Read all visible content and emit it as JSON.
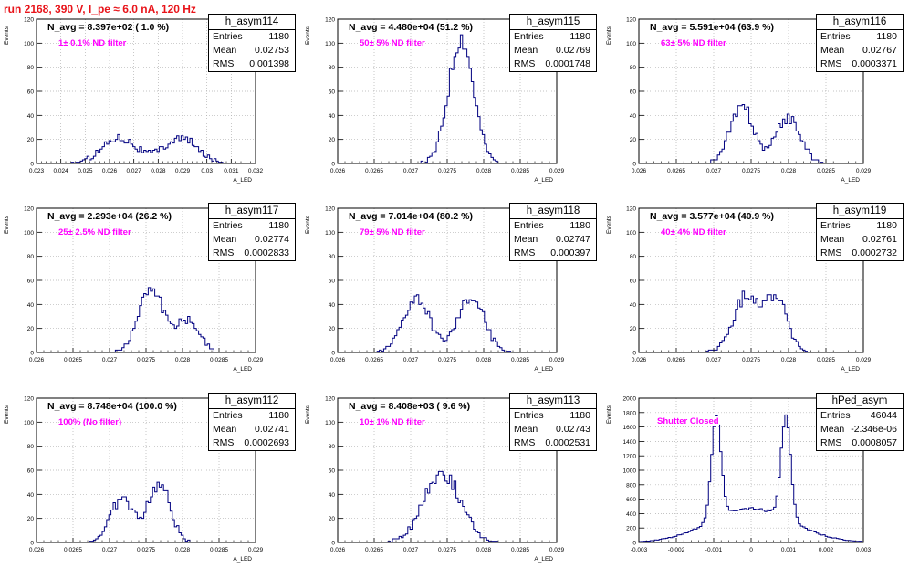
{
  "run_title": "run 2168,   390 V, I_pe ≈ 6.0 nA, 120 Hz",
  "colors": {
    "histogram_line": "#000080",
    "title": "#e8141a",
    "annotation": "#ff00ff",
    "grid": "#b0b0b0"
  },
  "chart_data": [
    {
      "type": "histogram",
      "hist_name": "h_asym114",
      "navg": "N_avg = 8.397e+02 ( 1.0 %)",
      "filter": "1± 0.1% ND filter",
      "stats": {
        "entries": "1180",
        "mean": "0.02753",
        "rms": "0.001398"
      },
      "ylabel": "Events",
      "xlabel": "A_LED",
      "xlim": [
        0.023,
        0.032
      ],
      "ylim": [
        0,
        120
      ],
      "xticks": [
        "0.023",
        "0.024",
        "0.025",
        "0.026",
        "0.027",
        "0.028",
        "0.029",
        "0.03",
        "0.031",
        "0.032"
      ],
      "yticks": [
        "0",
        "20",
        "40",
        "60",
        "80",
        "100",
        "120"
      ],
      "peaks": [
        [
          0.0264,
          22,
          0.0007
        ],
        [
          0.0289,
          21,
          0.0007
        ]
      ]
    },
    {
      "type": "histogram",
      "hist_name": "h_asym115",
      "navg": "N_avg = 4.480e+04 (51.2 %)",
      "filter": "50± 5% ND filter",
      "stats": {
        "entries": "1180",
        "mean": "0.02769",
        "rms": "0.0001748"
      },
      "ylabel": "Events",
      "xlabel": "A_LED",
      "xlim": [
        0.026,
        0.029
      ],
      "ylim": [
        0,
        120
      ],
      "xticks": [
        "0.026",
        "0.0265",
        "0.027",
        "0.0275",
        "0.028",
        "0.0285",
        "0.029"
      ],
      "yticks": [
        "0",
        "20",
        "40",
        "60",
        "80",
        "100",
        "120"
      ],
      "peaks": [
        [
          0.02769,
          105,
          0.00017
        ]
      ]
    },
    {
      "type": "histogram",
      "hist_name": "h_asym116",
      "navg": "N_avg = 5.591e+04 (63.9 %)",
      "filter": "63± 5% ND filter",
      "stats": {
        "entries": "1180",
        "mean": "0.02767",
        "rms": "0.0003371"
      },
      "ylabel": "Events",
      "xlabel": "A_LED",
      "xlim": [
        0.026,
        0.029
      ],
      "ylim": [
        0,
        120
      ],
      "xticks": [
        "0.026",
        "0.0265",
        "0.027",
        "0.0275",
        "0.028",
        "0.0285",
        "0.029"
      ],
      "yticks": [
        "0",
        "20",
        "40",
        "60",
        "80",
        "100",
        "120"
      ],
      "peaks": [
        [
          0.02738,
          46,
          0.00016
        ],
        [
          0.028,
          38,
          0.00016
        ]
      ]
    },
    {
      "type": "histogram",
      "hist_name": "h_asym117",
      "navg": "N_avg = 2.293e+04 (26.2 %)",
      "filter": "25± 2.5% ND filter",
      "stats": {
        "entries": "1180",
        "mean": "0.02774",
        "rms": "0.0002833"
      },
      "ylabel": "Events",
      "xlabel": "A_LED",
      "xlim": [
        0.026,
        0.029
      ],
      "ylim": [
        0,
        120
      ],
      "xticks": [
        "0.026",
        "0.0265",
        "0.027",
        "0.0275",
        "0.028",
        "0.0285",
        "0.029"
      ],
      "yticks": [
        "0",
        "20",
        "40",
        "60",
        "80",
        "100",
        "120"
      ],
      "peaks": [
        [
          0.02757,
          55,
          0.00017
        ],
        [
          0.02808,
          28,
          0.00015
        ]
      ]
    },
    {
      "type": "histogram",
      "hist_name": "h_asym118",
      "navg": "N_avg = 7.014e+04 (80.2 %)",
      "filter": "79± 5% ND filter",
      "stats": {
        "entries": "1180",
        "mean": "0.02747",
        "rms": "0.000397"
      },
      "ylabel": "Events",
      "xlabel": "A_LED",
      "xlim": [
        0.026,
        0.029
      ],
      "ylim": [
        0,
        120
      ],
      "xticks": [
        "0.026",
        "0.0265",
        "0.027",
        "0.0275",
        "0.028",
        "0.0285",
        "0.029"
      ],
      "yticks": [
        "0",
        "20",
        "40",
        "60",
        "80",
        "100",
        "120"
      ],
      "peaks": [
        [
          0.02708,
          45,
          0.00018
        ],
        [
          0.02783,
          46,
          0.00018
        ]
      ]
    },
    {
      "type": "histogram",
      "hist_name": "h_asym119",
      "navg": "N_avg = 3.577e+04 (40.9 %)",
      "filter": "40± 4% ND filter",
      "stats": {
        "entries": "1180",
        "mean": "0.02761",
        "rms": "0.0002732"
      },
      "ylabel": "Events",
      "xlabel": "A_LED",
      "xlim": [
        0.026,
        0.029
      ],
      "ylim": [
        0,
        120
      ],
      "xticks": [
        "0.026",
        "0.0265",
        "0.027",
        "0.0275",
        "0.028",
        "0.0285",
        "0.029"
      ],
      "yticks": [
        "0",
        "20",
        "40",
        "60",
        "80",
        "100",
        "120"
      ],
      "peaks": [
        [
          0.02745,
          48,
          0.00018
        ],
        [
          0.02785,
          44,
          0.00014
        ]
      ]
    },
    {
      "type": "histogram",
      "hist_name": "h_asym112",
      "navg": "N_avg = 8.748e+04 (100.0 %)",
      "filter": "100% (No filter)",
      "stats": {
        "entries": "1180",
        "mean": "0.02741",
        "rms": "0.0002693"
      },
      "ylabel": "Events",
      "xlabel": "A_LED",
      "xlim": [
        0.026,
        0.029
      ],
      "ylim": [
        0,
        120
      ],
      "xticks": [
        "0.026",
        "0.0265",
        "0.027",
        "0.0275",
        "0.028",
        "0.0285",
        "0.029"
      ],
      "yticks": [
        "0",
        "20",
        "40",
        "60",
        "80",
        "100",
        "120"
      ],
      "peaks": [
        [
          0.02717,
          36,
          0.00016
        ],
        [
          0.02768,
          48,
          0.00015
        ]
      ]
    },
    {
      "type": "histogram",
      "hist_name": "h_asym113",
      "navg": "N_avg = 8.408e+03 ( 9.6 %)",
      "filter": "10± 1% ND filter",
      "stats": {
        "entries": "1180",
        "mean": "0.02743",
        "rms": "0.0002531"
      },
      "ylabel": "Events",
      "xlabel": "A_LED",
      "xlim": [
        0.026,
        0.029
      ],
      "ylim": [
        0,
        120
      ],
      "xticks": [
        "0.026",
        "0.0265",
        "0.027",
        "0.0275",
        "0.028",
        "0.0285",
        "0.029"
      ],
      "yticks": [
        "0",
        "20",
        "40",
        "60",
        "80",
        "100",
        "120"
      ],
      "peaks": [
        [
          0.02743,
          58,
          0.00025
        ]
      ]
    },
    {
      "type": "histogram",
      "hist_name": "hPed_asym",
      "navg": "",
      "filter": "Shutter Closed",
      "stats": {
        "entries": "46044",
        "mean": "-2.346e-06",
        "rms": "0.0008057"
      },
      "ylabel": "Events",
      "xlabel": "",
      "xlim": [
        -0.003,
        0.003
      ],
      "ylim": [
        0,
        2200
      ],
      "xticks": [
        "-0.003",
        "-0.002",
        "-0.001",
        "0",
        "0.001",
        "0.002",
        "0.003"
      ],
      "yticks": [
        "0",
        "200",
        "400",
        "600",
        "800",
        "1000",
        "1200",
        "1400",
        "1600",
        "1800",
        "2000"
      ],
      "peaks": [
        [
          -0.00093,
          1550,
          0.00013
        ],
        [
          0.00093,
          1550,
          0.00013
        ]
      ],
      "floor": [
        0,
        520,
        0.0011
      ]
    }
  ]
}
